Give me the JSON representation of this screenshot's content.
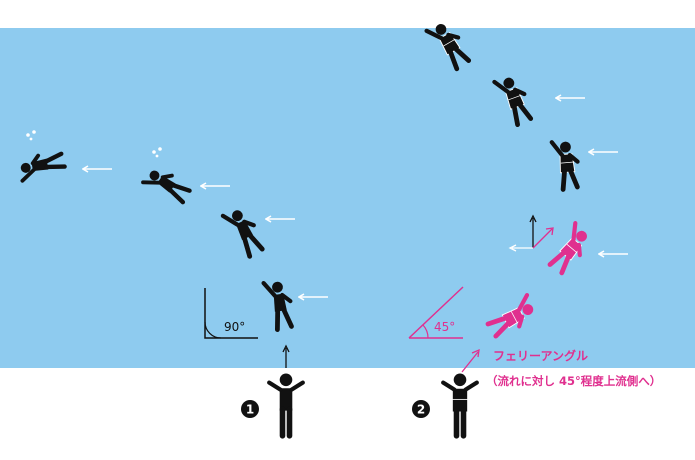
{
  "colors": {
    "water": "#8ecbef",
    "background": "#ffffff",
    "figure": "#111111",
    "arrow": "#ffffff",
    "accent": "#e0308f"
  },
  "left_method": {
    "number": "1",
    "angle_label": "90°"
  },
  "right_method": {
    "number": "2",
    "angle_label": "45°",
    "title": "フェリーアングル",
    "subtitle": "（流れに対し 45°程度上流側へ）"
  }
}
